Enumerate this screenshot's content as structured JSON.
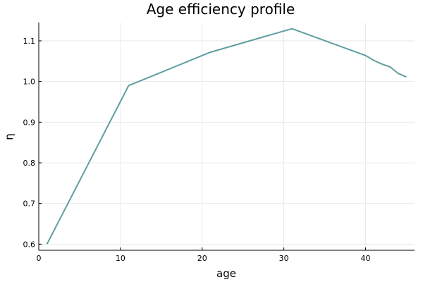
{
  "chart_data": {
    "type": "line",
    "title": "Age efficiency profile",
    "xlabel": "age",
    "ylabel": "η",
    "xlim": [
      0,
      46
    ],
    "ylim": [
      0.585,
      1.145
    ],
    "xticks": [
      0,
      10,
      20,
      30,
      40
    ],
    "yticks": [
      0.6,
      0.7,
      0.8,
      0.9,
      1.0,
      1.1
    ],
    "ytick_labels": [
      "0.6",
      "0.7",
      "0.8",
      "0.9",
      "1.0",
      "1.1"
    ],
    "grid": true,
    "legend": false,
    "series": [
      {
        "color": "#5f9ea0",
        "x": [
          1,
          11,
          21,
          31,
          40,
          41,
          42,
          43,
          44,
          45
        ],
        "y": [
          0.6,
          0.99,
          1.072,
          1.13,
          1.064,
          1.052,
          1.043,
          1.036,
          1.02,
          1.011
        ]
      }
    ]
  }
}
